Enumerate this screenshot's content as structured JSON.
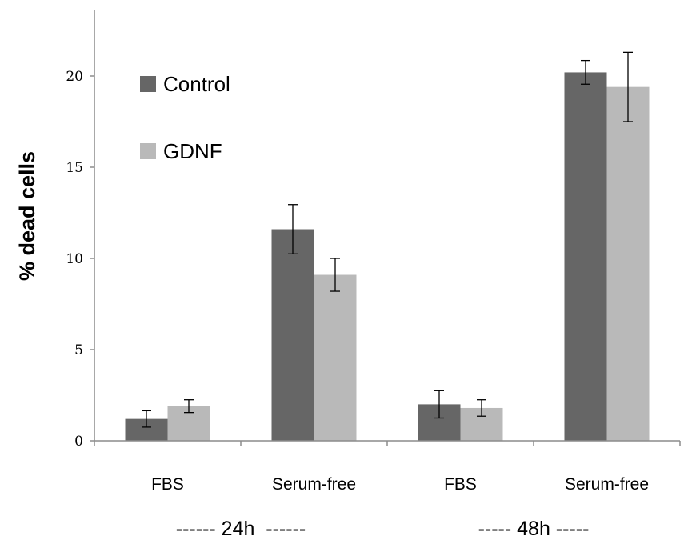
{
  "chart_data": {
    "type": "bar",
    "ylabel": "% dead cells",
    "ylim": [
      0,
      20
    ],
    "yticks": [
      0,
      5,
      10,
      15,
      20
    ],
    "categories": [
      "FBS",
      "Serum-free",
      "FBS",
      "Serum-free"
    ],
    "groups": [
      {
        "label": "------ 24h  ------",
        "categories": [
          0,
          1
        ]
      },
      {
        "label": "----- 48h -----",
        "categories": [
          2,
          3
        ]
      }
    ],
    "series": [
      {
        "name": "Control",
        "color": "#666666",
        "values": [
          1.2,
          11.6,
          2.0,
          20.2
        ],
        "errors": [
          0.45,
          1.35,
          0.75,
          0.65
        ]
      },
      {
        "name": "GDNF",
        "color": "#b9b9b9",
        "values": [
          1.9,
          9.1,
          1.8,
          19.4
        ],
        "errors": [
          0.35,
          0.9,
          0.45,
          1.9
        ]
      }
    ],
    "legend": "top-left",
    "grid": false
  }
}
